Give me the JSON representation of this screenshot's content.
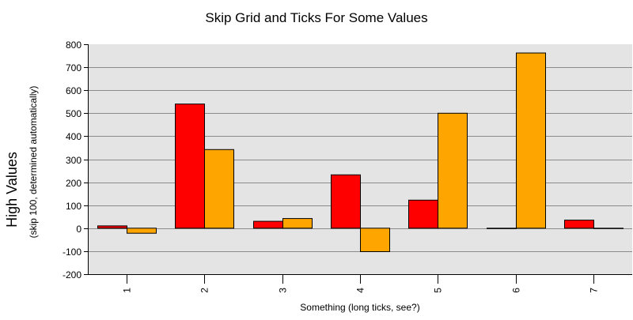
{
  "chart_data": {
    "type": "bar",
    "title": "Skip Grid and Ticks For Some Values",
    "xlabel": "Something (long ticks, see?)",
    "ylabel": "High Values",
    "ylabel_sub": "(skip 100, determined automatically)",
    "categories": [
      "1",
      "2",
      "3",
      "4",
      "5",
      "6",
      "7"
    ],
    "series": [
      {
        "values": [
          10,
          540,
          30,
          232,
          122,
          -2,
          35
        ],
        "color": "#ff0000"
      },
      {
        "values": [
          -22,
          342,
          42,
          -102,
          500,
          762,
          0
        ],
        "color": "#ffa500"
      }
    ],
    "ylim": [
      -200,
      800
    ],
    "yticks": [
      "800",
      "700",
      "600",
      "500",
      "400",
      "300",
      "200",
      "100",
      "0",
      "-100",
      "-200"
    ],
    "grid": true,
    "plot_background": "#e4e4e4"
  }
}
